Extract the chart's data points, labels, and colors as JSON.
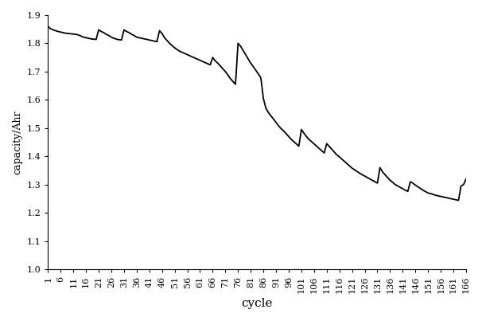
{
  "xlabel": "cycle",
  "ylabel": "capacity/Ahr",
  "xlim": [
    1,
    166
  ],
  "ylim": [
    1.0,
    1.9
  ],
  "xticks": [
    1,
    6,
    11,
    16,
    21,
    26,
    31,
    36,
    41,
    46,
    51,
    56,
    61,
    66,
    71,
    76,
    81,
    86,
    91,
    96,
    101,
    106,
    111,
    116,
    121,
    126,
    131,
    136,
    141,
    146,
    151,
    156,
    161,
    166
  ],
  "yticks": [
    1.0,
    1.1,
    1.2,
    1.3,
    1.4,
    1.5,
    1.6,
    1.7,
    1.8,
    1.9
  ],
  "line_color": "#000000",
  "line_width": 1.3,
  "background_color": "#ffffff",
  "xlabel_fontsize": 11,
  "ylabel_fontsize": 9,
  "tick_fontsize": 8,
  "cycle_data": [
    1,
    2,
    3,
    4,
    5,
    6,
    7,
    8,
    9,
    10,
    11,
    12,
    13,
    14,
    15,
    16,
    17,
    18,
    19,
    20,
    21,
    22,
    23,
    24,
    25,
    26,
    27,
    28,
    29,
    30,
    31,
    32,
    33,
    34,
    35,
    36,
    37,
    38,
    39,
    40,
    41,
    42,
    43,
    44,
    45,
    46,
    47,
    48,
    49,
    50,
    51,
    52,
    53,
    54,
    55,
    56,
    57,
    58,
    59,
    60,
    61,
    62,
    63,
    64,
    65,
    66,
    67,
    68,
    69,
    70,
    71,
    72,
    73,
    74,
    75,
    76,
    77,
    78,
    79,
    80,
    81,
    82,
    83,
    84,
    85,
    86,
    87,
    88,
    89,
    90,
    91,
    92,
    93,
    94,
    95,
    96,
    97,
    98,
    99,
    100,
    101,
    102,
    103,
    104,
    105,
    106,
    107,
    108,
    109,
    110,
    111,
    112,
    113,
    114,
    115,
    116,
    117,
    118,
    119,
    120,
    121,
    122,
    123,
    124,
    125,
    126,
    127,
    128,
    129,
    130,
    131,
    132,
    133,
    134,
    135,
    136,
    137,
    138,
    139,
    140,
    141,
    142,
    143,
    144,
    145,
    146,
    147,
    148,
    149,
    150,
    151,
    152,
    153,
    154,
    155,
    156,
    157,
    158,
    159,
    160,
    161,
    162,
    163,
    164,
    165,
    166
  ],
  "capacity_data": [
    1.86,
    1.852,
    1.848,
    1.845,
    1.842,
    1.84,
    1.838,
    1.836,
    1.835,
    1.834,
    1.833,
    1.832,
    1.83,
    1.826,
    1.822,
    1.82,
    1.818,
    1.816,
    1.815,
    1.814,
    1.848,
    1.842,
    1.838,
    1.832,
    1.828,
    1.822,
    1.818,
    1.815,
    1.813,
    1.812,
    1.848,
    1.842,
    1.838,
    1.832,
    1.828,
    1.822,
    1.82,
    1.818,
    1.816,
    1.814,
    1.812,
    1.81,
    1.808,
    1.806,
    1.845,
    1.835,
    1.82,
    1.81,
    1.8,
    1.792,
    1.784,
    1.778,
    1.772,
    1.768,
    1.764,
    1.76,
    1.756,
    1.752,
    1.748,
    1.744,
    1.74,
    1.736,
    1.732,
    1.728,
    1.724,
    1.75,
    1.738,
    1.73,
    1.72,
    1.71,
    1.7,
    1.688,
    1.675,
    1.665,
    1.655,
    1.8,
    1.79,
    1.775,
    1.76,
    1.745,
    1.73,
    1.718,
    1.705,
    1.692,
    1.678,
    1.605,
    1.57,
    1.555,
    1.543,
    1.532,
    1.52,
    1.508,
    1.498,
    1.49,
    1.48,
    1.47,
    1.46,
    1.452,
    1.444,
    1.436,
    1.495,
    1.482,
    1.47,
    1.46,
    1.452,
    1.444,
    1.436,
    1.428,
    1.42,
    1.412,
    1.445,
    1.435,
    1.425,
    1.415,
    1.405,
    1.398,
    1.39,
    1.382,
    1.374,
    1.366,
    1.358,
    1.352,
    1.346,
    1.34,
    1.335,
    1.33,
    1.325,
    1.32,
    1.315,
    1.31,
    1.305,
    1.36,
    1.345,
    1.335,
    1.325,
    1.315,
    1.308,
    1.3,
    1.295,
    1.29,
    1.285,
    1.28,
    1.276,
    1.31,
    1.305,
    1.298,
    1.292,
    1.286,
    1.28,
    1.275,
    1.27,
    1.268,
    1.265,
    1.262,
    1.26,
    1.258,
    1.256,
    1.254,
    1.252,
    1.25,
    1.248,
    1.246,
    1.244,
    1.295,
    1.3,
    1.32
  ]
}
